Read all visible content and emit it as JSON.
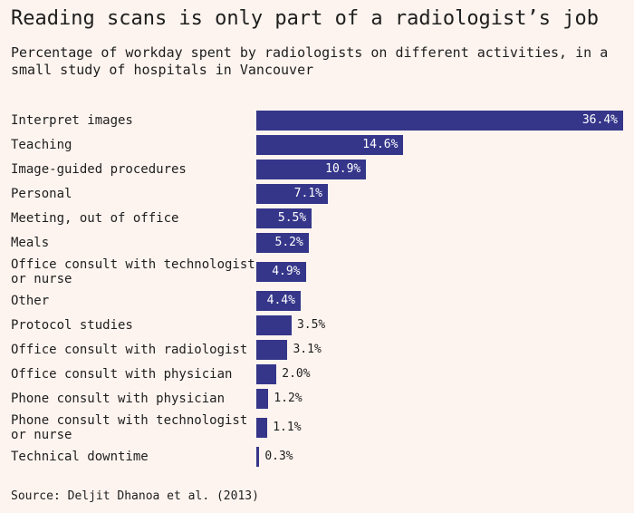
{
  "chart_data": {
    "type": "bar",
    "orientation": "horizontal",
    "title": "Reading scans is only part of a radiologist’s job",
    "subtitle": "Percentage of workday spent by radiologists on different activities, in a small study of hospitals in Vancouver",
    "source": "Source: Deljit Dhanoa et al. (2013)",
    "color": "#35368a",
    "categories": [
      "Interpret images",
      "Teaching",
      "Image-guided procedures",
      "Personal",
      "Meeting, out of office",
      "Meals",
      "Office consult with technologist or nurse",
      "Other",
      "Protocol studies",
      "Office consult with radiologist",
      "Office consult with physician",
      "Phone consult with physician",
      "Phone consult with technologist or nurse",
      "Technical downtime"
    ],
    "values": [
      36.4,
      14.6,
      10.9,
      7.1,
      5.5,
      5.2,
      4.9,
      4.4,
      3.5,
      3.1,
      2.0,
      1.2,
      1.1,
      0.3
    ],
    "value_labels": [
      "36.4%",
      "14.6%",
      "10.9%",
      "7.1%",
      "5.5%",
      "5.2%",
      "4.9%",
      "4.4%",
      "3.5%",
      "3.1%",
      "2.0%",
      "1.2%",
      "1.1%",
      "0.3%"
    ]
  }
}
